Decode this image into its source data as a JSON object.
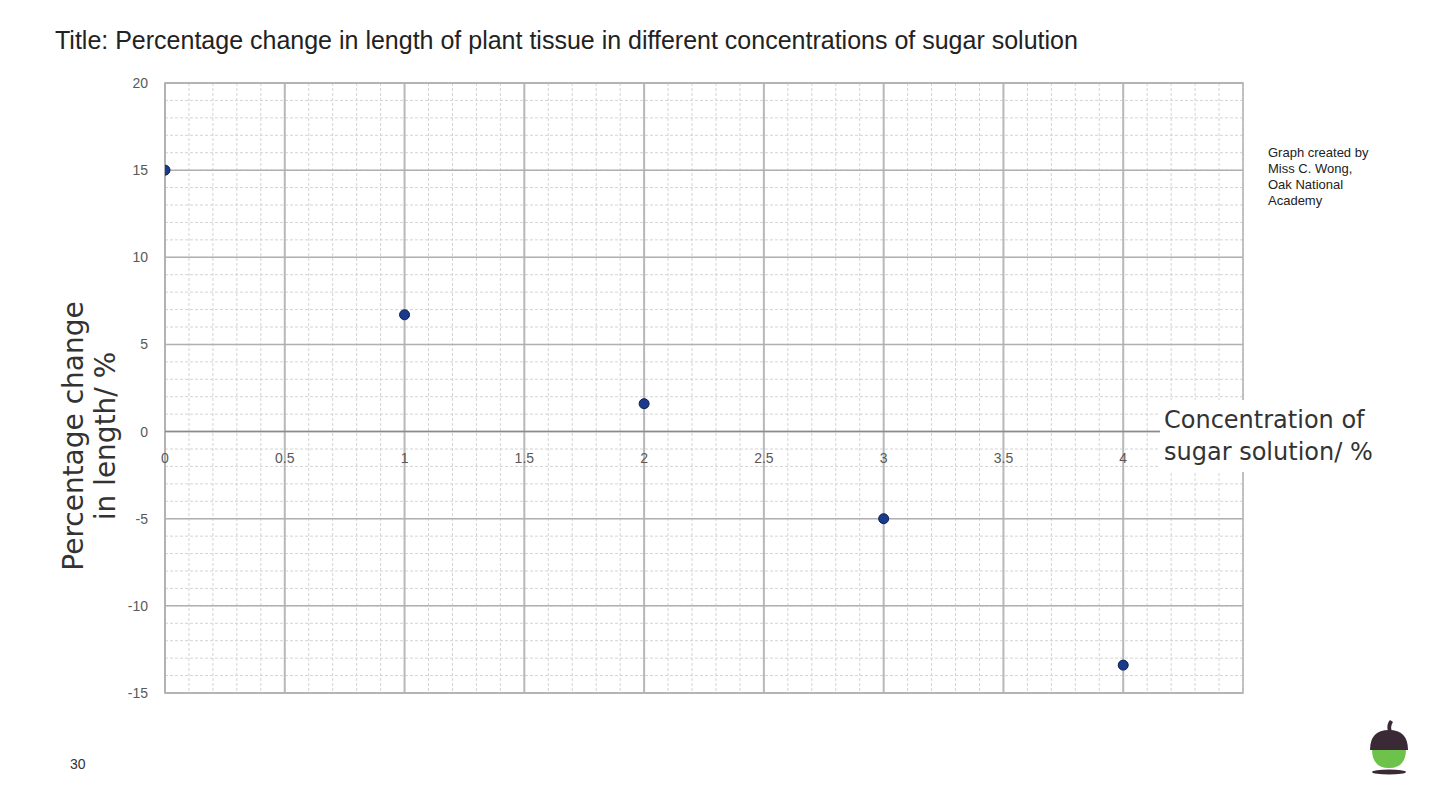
{
  "chart_data": {
    "type": "scatter",
    "title": "Title: Percentage change in length of plant tissue in different concentrations of sugar solution",
    "x_label": "Concentration of sugar solution/ %",
    "y_label": "Percentage change in length/ %",
    "x": [
      0,
      1,
      2,
      3,
      4
    ],
    "values": [
      15,
      6.7,
      1.6,
      -5,
      -13.4
    ],
    "color": "#1a3a8c",
    "marker": "circle",
    "xlim": [
      0,
      4.5
    ],
    "xticks": [
      0,
      0.5,
      1,
      1.5,
      2,
      2.5,
      3,
      3.5,
      4
    ],
    "ylim": [
      -15,
      20
    ],
    "yticks": [
      -15,
      -10,
      -5,
      0,
      5,
      10,
      15,
      20
    ],
    "grid": true,
    "annotations": [
      "Graph created by Miss C. Wong, Oak National Academy"
    ]
  },
  "page_number": 30
}
